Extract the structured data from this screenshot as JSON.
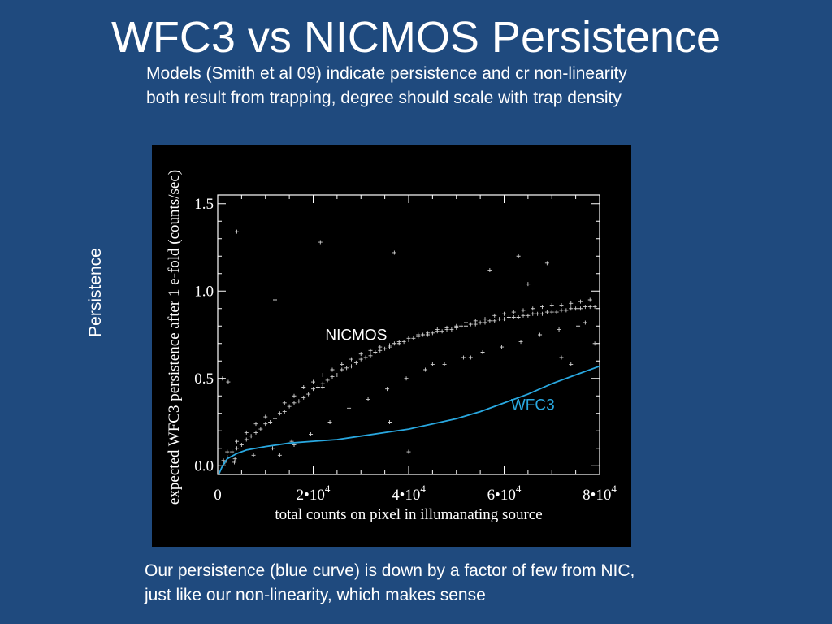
{
  "slide": {
    "title": "WFC3 vs NICMOS Persistence",
    "subtitle_lines": [
      "Models (Smith et al 09) indicate persistence and cr non-linearity",
      "both result from trapping, degree should scale with trap density"
    ],
    "side_label": "Persistence",
    "footer_lines": [
      "Our persistence (blue curve)  is down by a factor of few from NIC,",
      "just like our non-linearity, which makes sense"
    ],
    "colors": {
      "background": "#1f4a7e",
      "panel": "#000000",
      "wfc3_curve": "#29a8e0",
      "points": "#d0d0d0"
    }
  },
  "chart_data": {
    "type": "scatter",
    "title": "",
    "xlabel": "total counts on pixel in illumanating source",
    "ylabel": "expected WFC3 persistence after 1 e-fold (counts/sec)",
    "xlim": [
      0,
      80000
    ],
    "ylim": [
      -0.05,
      1.55
    ],
    "grid": false,
    "x_ticks": [
      {
        "value": 0,
        "base": "0",
        "exp": ""
      },
      {
        "value": 20000,
        "base": "2•10",
        "exp": "4"
      },
      {
        "value": 40000,
        "base": "4•10",
        "exp": "4"
      },
      {
        "value": 60000,
        "base": "6•10",
        "exp": "4"
      },
      {
        "value": 80000,
        "base": "8•10",
        "exp": "4"
      }
    ],
    "y_ticks": [
      {
        "value": 0.0,
        "label": "0.0"
      },
      {
        "value": 0.5,
        "label": "0.5"
      },
      {
        "value": 1.0,
        "label": "1.0"
      },
      {
        "value": 1.5,
        "label": "1.5"
      }
    ],
    "annotations": [
      {
        "text": "NICMOS",
        "x": 29000,
        "y": 0.72,
        "color": "#ffffff"
      },
      {
        "text": "WFC3",
        "x": 66000,
        "y": 0.32,
        "color": "#29a8e0"
      }
    ],
    "series": [
      {
        "name": "NICMOS",
        "marker": "+",
        "x": [
          1200,
          2000,
          3000,
          4000,
          5000,
          6000,
          7000,
          8000,
          9000,
          10000,
          11000,
          12000,
          13000,
          14000,
          15000,
          16000,
          17000,
          18000,
          19000,
          20000,
          21000,
          22000,
          23000,
          24000,
          25000,
          26000,
          27000,
          28000,
          29000,
          30000,
          31000,
          32000,
          33000,
          34000,
          35000,
          36000,
          37000,
          38000,
          39000,
          40000,
          41000,
          42000,
          43000,
          44000,
          45000,
          46000,
          47000,
          48000,
          49000,
          50000,
          51000,
          52000,
          53000,
          54000,
          55000,
          56000,
          57000,
          58000,
          59000,
          60000,
          61000,
          62000,
          63000,
          64000,
          65000,
          66000,
          67000,
          68000,
          69000,
          70000,
          71000,
          72000,
          73000,
          74000,
          75000,
          76000,
          77000,
          78000,
          79000,
          2000,
          4000,
          6000,
          8000,
          10000,
          12000,
          14000,
          16000,
          18000,
          20000,
          22000,
          24000,
          26000,
          28000,
          30000,
          32000,
          34000,
          36000,
          38000,
          40000,
          42000,
          44000,
          46000,
          48000,
          50000,
          52000,
          54000,
          56000,
          58000,
          60000,
          62000,
          64000,
          66000,
          68000,
          70000,
          72000,
          74000,
          76000,
          78000,
          3500,
          7500,
          11500,
          15500,
          19500,
          23500,
          27500,
          31500,
          35500,
          39500,
          43500,
          47500,
          51500,
          55500,
          59500,
          63500,
          67500,
          71500,
          75500,
          1500,
          3600,
          1000,
          2200,
          12000,
          21500,
          37000,
          63000,
          4000,
          13000,
          16000,
          22000,
          36000,
          45000,
          53000,
          57000,
          65000,
          69000,
          72000,
          74000,
          77000,
          79000,
          40000
        ],
        "y": [
          0.03,
          0.05,
          0.08,
          0.1,
          0.12,
          0.15,
          0.17,
          0.19,
          0.21,
          0.24,
          0.25,
          0.27,
          0.3,
          0.31,
          0.34,
          0.36,
          0.37,
          0.39,
          0.41,
          0.44,
          0.45,
          0.47,
          0.49,
          0.51,
          0.52,
          0.55,
          0.56,
          0.57,
          0.59,
          0.61,
          0.62,
          0.63,
          0.65,
          0.66,
          0.67,
          0.68,
          0.7,
          0.7,
          0.71,
          0.72,
          0.73,
          0.74,
          0.75,
          0.75,
          0.76,
          0.77,
          0.77,
          0.78,
          0.78,
          0.79,
          0.8,
          0.8,
          0.81,
          0.81,
          0.82,
          0.82,
          0.83,
          0.83,
          0.84,
          0.84,
          0.85,
          0.85,
          0.85,
          0.86,
          0.86,
          0.87,
          0.87,
          0.87,
          0.88,
          0.88,
          0.88,
          0.89,
          0.89,
          0.9,
          0.9,
          0.9,
          0.91,
          0.91,
          0.91,
          0.08,
          0.14,
          0.19,
          0.24,
          0.28,
          0.32,
          0.36,
          0.4,
          0.45,
          0.48,
          0.52,
          0.55,
          0.58,
          0.61,
          0.64,
          0.66,
          0.68,
          0.69,
          0.71,
          0.73,
          0.75,
          0.76,
          0.78,
          0.79,
          0.8,
          0.82,
          0.83,
          0.84,
          0.86,
          0.87,
          0.88,
          0.89,
          0.9,
          0.91,
          0.92,
          0.92,
          0.93,
          0.94,
          0.95,
          0.02,
          0.06,
          0.1,
          0.14,
          0.18,
          0.25,
          0.33,
          0.38,
          0.44,
          0.5,
          0.55,
          0.58,
          0.62,
          0.65,
          0.68,
          0.71,
          0.75,
          0.78,
          0.8,
          0.02,
          0.04,
          0.5,
          0.48,
          0.95,
          1.28,
          1.22,
          1.2,
          1.34,
          0.06,
          0.12,
          0.45,
          0.25,
          0.58,
          0.62,
          1.12,
          1.04,
          1.16,
          0.62,
          0.58,
          0.82,
          0.7,
          0.08
        ]
      },
      {
        "name": "WFC3",
        "type": "line",
        "x": [
          200,
          1000,
          2000,
          4000,
          6000,
          8000,
          10000,
          15000,
          20000,
          25000,
          30000,
          35000,
          40000,
          45000,
          50000,
          55000,
          60000,
          65000,
          70000,
          75000,
          80000
        ],
        "y": [
          -0.1,
          0.0,
          0.04,
          0.07,
          0.09,
          0.1,
          0.11,
          0.13,
          0.14,
          0.15,
          0.17,
          0.19,
          0.21,
          0.24,
          0.27,
          0.31,
          0.36,
          0.41,
          0.47,
          0.52,
          0.57
        ]
      }
    ]
  }
}
